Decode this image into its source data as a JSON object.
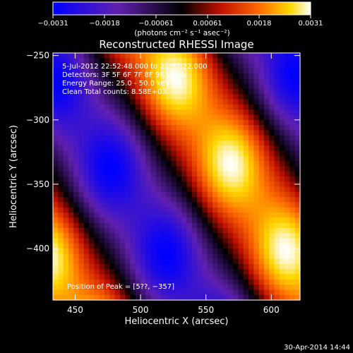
{
  "chart_data": {
    "type": "heatmap",
    "title": "Reconstructed RHESSI Image",
    "xlabel": "Heliocentric X (arcsec)",
    "ylabel": "Heliocentric Y (arcsec)",
    "xlim": [
      433,
      622
    ],
    "ylim": [
      -440,
      -248
    ],
    "x_ticks": [
      "450",
      "500",
      "550",
      "600"
    ],
    "y_ticks": [
      "−250",
      "−300",
      "−350",
      "−400"
    ],
    "annotations": [
      "5-Jul-2012 22:52:48.000 to 22:57:22.000",
      "Detectors: 3F 5F 6F 7F 8F 9F, Att 1",
      "Energy Range: 25.0 - 50.0 keV",
      "Clean     Total counts: 8.58E+03"
    ],
    "peak_label": "Position of Peak = [5??, −357]",
    "colorbar": {
      "min": -0.0031,
      "max": 0.0031,
      "tick_labels": [
        "−0.0031",
        "−0.0018",
        "−0.00061",
        "0.00061",
        "0.0018",
        "0.0031"
      ],
      "units_label": "(photons cm⁻² s⁻¹ asec⁻²)"
    },
    "pattern": {
      "description_values": "diagonal fringe pattern; value = cos(k·(x,y) + phase)",
      "wave_vector": [
        0.0335,
        0.0212
      ],
      "phase": 0.6,
      "amplitude": 0.0031
    },
    "timestamp": "30-Apr-2014 14:44"
  }
}
